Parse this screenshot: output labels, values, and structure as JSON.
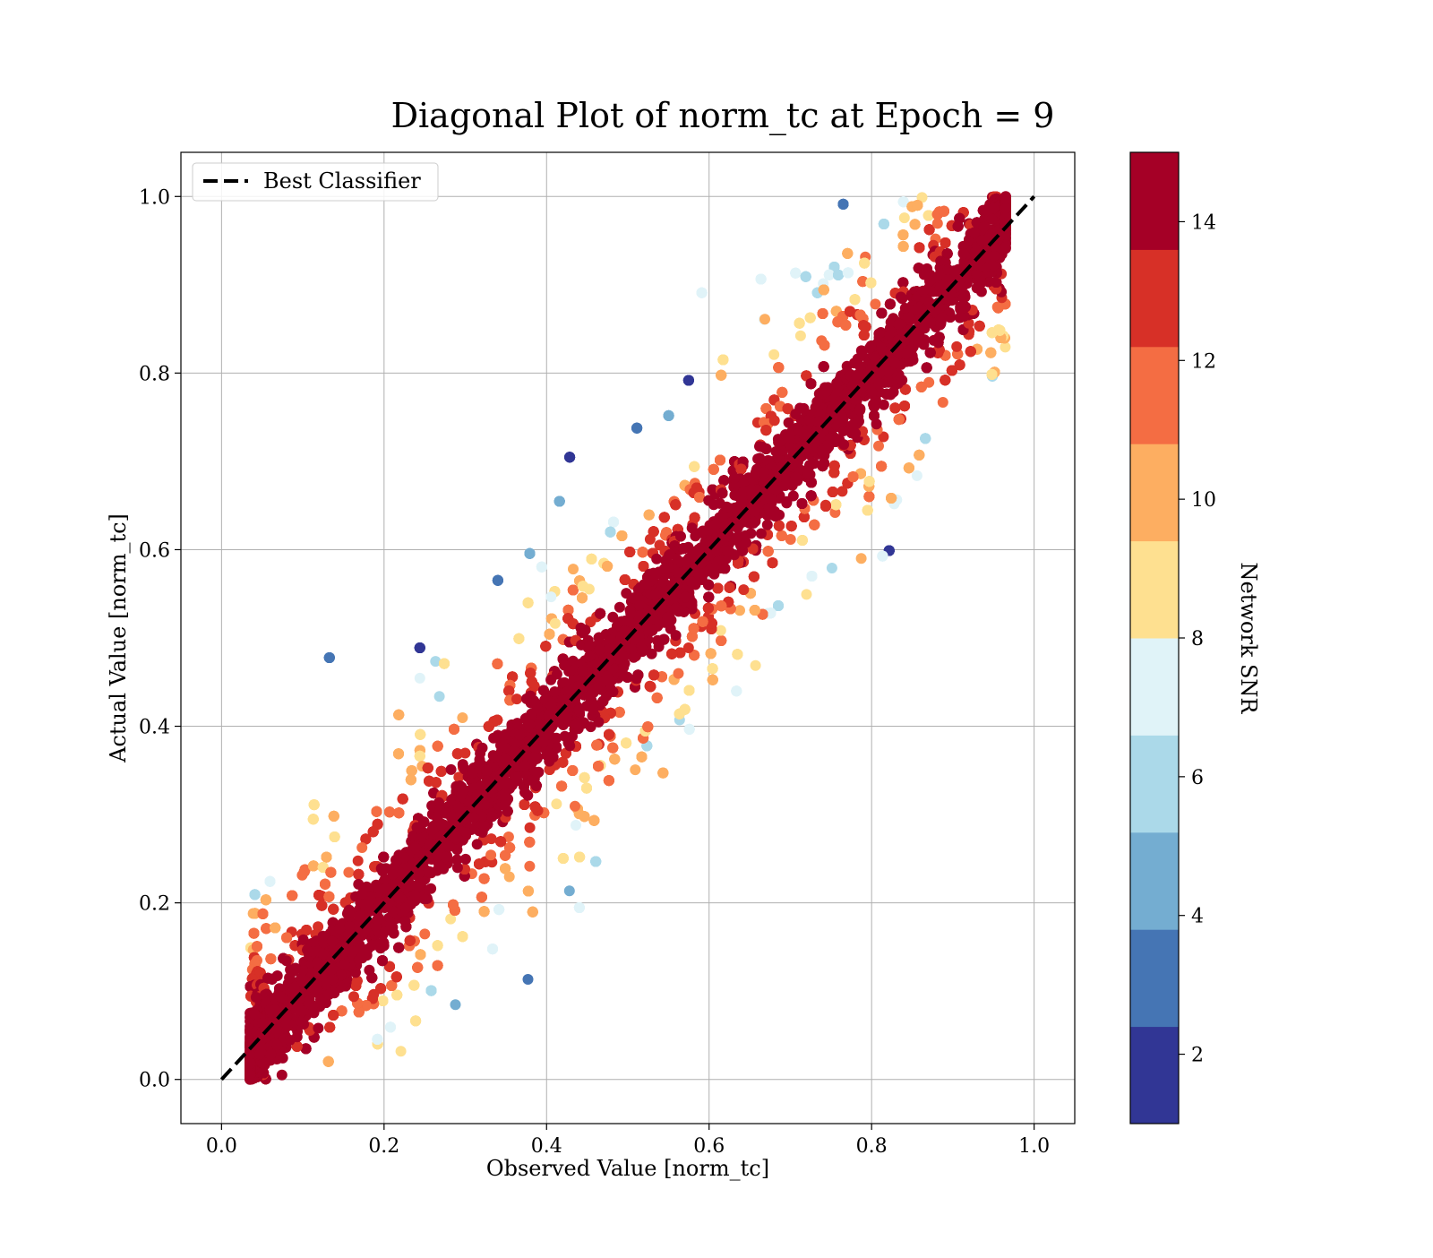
{
  "chart_data": {
    "type": "scatter",
    "title": "Diagonal Plot of norm_tc at Epoch = 9",
    "xlabel": "Observed Value [norm_tc]",
    "ylabel": "Actual Value [norm_tc]",
    "xlim": [
      -0.05,
      1.05
    ],
    "ylim": [
      -0.05,
      1.05
    ],
    "xticks": [
      "0.0",
      "0.2",
      "0.4",
      "0.6",
      "0.8",
      "1.0"
    ],
    "yticks": [
      "0.0",
      "0.2",
      "0.4",
      "0.6",
      "0.8",
      "1.0"
    ],
    "grid": true,
    "legend": {
      "position": "top-left",
      "entries": [
        "Best Classifier"
      ]
    },
    "reference_line": {
      "name": "Best Classifier",
      "x": [
        0,
        1
      ],
      "y": [
        0,
        1
      ],
      "style": "dashed",
      "color": "#000000"
    },
    "colorbar": {
      "label": "Network SNR",
      "range": [
        1,
        15
      ],
      "ticks": [
        "2",
        "4",
        "6",
        "8",
        "10",
        "12",
        "14"
      ],
      "levels": [
        "#313695",
        "#4575b4",
        "#74add1",
        "#abd9e9",
        "#e0f3f8",
        "#fee090",
        "#fdae61",
        "#f46d43",
        "#d73027",
        "#a50026"
      ]
    },
    "scatter_description": {
      "x_range": [
        0.03,
        0.97
      ],
      "y_range": [
        0.0,
        1.0
      ],
      "relation": "points cluster along y = x; high SNR (14+) along diagonal, lower SNR spreading farther off-diagonal"
    }
  }
}
